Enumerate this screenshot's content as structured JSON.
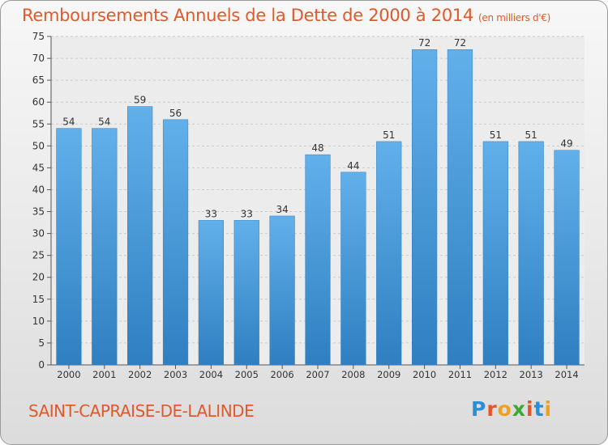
{
  "title": "Remboursements Annuels de la Dette de 2000 à 2014",
  "unit": "(en milliers d'€)",
  "commune": "SAINT-CAPRAISE-DE-LALINDE",
  "logo": {
    "letters": [
      "P",
      "r",
      "o",
      "x",
      "i",
      "t",
      "i"
    ],
    "colors": [
      "#2a8fd6",
      "#e8542a",
      "#f0a020",
      "#3aaa35",
      "#e8542a",
      "#2a8fd6",
      "#f0a020"
    ]
  },
  "chart_data": {
    "type": "bar",
    "title": "Remboursements Annuels de la Dette de 2000 à 2014",
    "ylabel": "en milliers d'€",
    "categories": [
      "2000",
      "2001",
      "2002",
      "2003",
      "2004",
      "2005",
      "2006",
      "2007",
      "2008",
      "2009",
      "2010",
      "2011",
      "2012",
      "2013",
      "2014"
    ],
    "values": [
      54,
      54,
      59,
      56,
      33,
      33,
      34,
      48,
      44,
      51,
      72,
      72,
      51,
      51,
      49
    ],
    "ylim": [
      0,
      75
    ],
    "yticks": [
      0,
      5,
      10,
      15,
      20,
      25,
      30,
      35,
      40,
      45,
      50,
      55,
      60,
      65,
      70,
      75
    ],
    "grid": true,
    "bar_color": "#4f9fdc"
  }
}
